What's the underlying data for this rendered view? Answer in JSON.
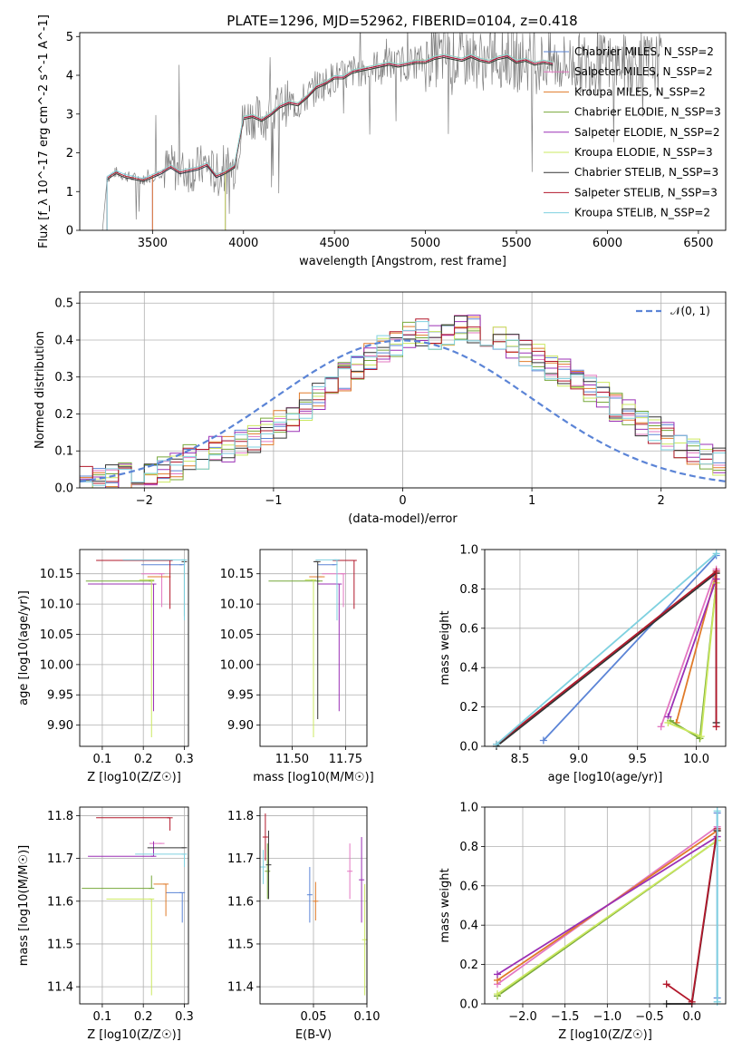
{
  "figure_title": "PLATE=1296, MJD=52962, FIBERID=0104, z=0.418",
  "colors": {
    "chabrier_miles": "#5b84d6",
    "salpeter_miles": "#e377c2",
    "kroupa_miles": "#e07b2a",
    "chabrier_elodie": "#77a83a",
    "salpeter_elodie": "#9b30b5",
    "kroupa_elodie": "#cbe860",
    "chabrier_stelib": "#333333",
    "salpeter_stelib": "#b2182b",
    "kroupa_stelib": "#7fd1e0",
    "data": "#808080",
    "normal": "#5b84d6",
    "grid": "#b0b0b0"
  },
  "chart_data": [
    {
      "id": "spectrum",
      "type": "line",
      "title": "PLATE=1296, MJD=52962, FIBERID=0104, z=0.418",
      "xlabel": "wavelength [Angstrom, rest frame]",
      "ylabel": "Flux [f_λ 10^-17 erg cm^-2 s^-1 A^-1]",
      "xlim": [
        3100,
        6650
      ],
      "ylim": [
        0,
        5.1
      ],
      "xticks": [
        "3500",
        "4000",
        "4500",
        "5000",
        "5500",
        "6000",
        "6500"
      ],
      "yticks": [
        "0",
        "1",
        "2",
        "3",
        "4",
        "5"
      ],
      "grid": false,
      "legend_position": "top-right",
      "legend": [
        {
          "label": "Chabrier MILES, N_SSP=2",
          "color_key": "chabrier_miles"
        },
        {
          "label": "Salpeter MILES, N_SSP=2",
          "color_key": "salpeter_miles"
        },
        {
          "label": "Kroupa MILES, N_SSP=2",
          "color_key": "kroupa_miles"
        },
        {
          "label": "Chabrier ELODIE, N_SSP=3",
          "color_key": "chabrier_elodie"
        },
        {
          "label": "Salpeter ELODIE, N_SSP=2",
          "color_key": "salpeter_elodie"
        },
        {
          "label": "Kroupa ELODIE, N_SSP=3",
          "color_key": "kroupa_elodie"
        },
        {
          "label": "Chabrier STELIB, N_SSP=3",
          "color_key": "chabrier_stelib"
        },
        {
          "label": "Salpeter STELIB, N_SSP=3",
          "color_key": "salpeter_stelib"
        },
        {
          "label": "Kroupa STELIB, N_SSP=2",
          "color_key": "kroupa_stelib"
        }
      ],
      "model_x": [
        3250,
        3300,
        3350,
        3400,
        3450,
        3500,
        3550,
        3600,
        3650,
        3700,
        3750,
        3800,
        3850,
        3900,
        3950,
        4000,
        4050,
        4100,
        4150,
        4200,
        4250,
        4300,
        4350,
        4400,
        4450,
        4500,
        4550,
        4600,
        4650,
        4700,
        4750,
        4800,
        4850,
        4900,
        4950,
        5000,
        5050,
        5100,
        5150,
        5200,
        5250,
        5300,
        5350,
        5400,
        5450,
        5500,
        5550,
        5600,
        5650,
        5700
      ],
      "model_y": [
        1.35,
        1.5,
        1.4,
        1.35,
        1.3,
        1.4,
        1.5,
        1.65,
        1.5,
        1.55,
        1.6,
        1.7,
        1.4,
        1.5,
        1.65,
        2.9,
        2.95,
        2.85,
        3.0,
        3.2,
        3.3,
        3.25,
        3.45,
        3.7,
        3.8,
        3.95,
        3.95,
        4.1,
        4.15,
        4.2,
        4.25,
        4.3,
        4.25,
        4.3,
        4.35,
        4.35,
        4.45,
        4.5,
        4.45,
        4.4,
        4.5,
        4.4,
        4.35,
        4.45,
        4.5,
        4.35,
        4.4,
        4.3,
        4.35,
        4.3
      ],
      "model_starts": {
        "chabrier_miles": 3500,
        "salpeter_miles": 3500,
        "kroupa_miles": 3500,
        "chabrier_elodie": 3900,
        "salpeter_elodie": 3900,
        "kroupa_elodie": 3900,
        "chabrier_stelib": 3250,
        "salpeter_stelib": 3250,
        "kroupa_stelib": 3250
      }
    },
    {
      "id": "residuals",
      "type": "histogram",
      "xlabel": "(data-model)/error",
      "ylabel": "Normed distribution",
      "xlim": [
        -2.5,
        2.5
      ],
      "ylim": [
        0,
        0.53
      ],
      "xticks": [
        "−2",
        "−1",
        "0",
        "1",
        "2"
      ],
      "yticks": [
        "0.0",
        "0.1",
        "0.2",
        "0.3",
        "0.4",
        "0.5"
      ],
      "grid": true,
      "legend_position": "top-right",
      "legend": [
        {
          "label": "𝒩(0, 1)",
          "style": "dashed",
          "color_key": "normal"
        }
      ],
      "bin_edges_start": -2.5,
      "bin_width": 0.1,
      "hist_values": [
        0.02,
        0.02,
        0.03,
        0.03,
        0.03,
        0.04,
        0.05,
        0.06,
        0.08,
        0.09,
        0.1,
        0.1,
        0.12,
        0.13,
        0.15,
        0.17,
        0.19,
        0.22,
        0.25,
        0.27,
        0.3,
        0.33,
        0.36,
        0.38,
        0.39,
        0.41,
        0.42,
        0.41,
        0.42,
        0.43,
        0.43,
        0.42,
        0.41,
        0.39,
        0.37,
        0.35,
        0.33,
        0.31,
        0.29,
        0.27,
        0.25,
        0.22,
        0.2,
        0.18,
        0.16,
        0.14,
        0.12,
        0.1,
        0.08,
        0.07
      ]
    },
    {
      "id": "age_vs_Z",
      "type": "scatter",
      "xlabel": "Z [log10(Z/Z☉)]",
      "ylabel": "age [log10(age/yr)]",
      "xlim": [
        0.045,
        0.31
      ],
      "ylim": [
        9.865,
        10.19
      ],
      "xticks": [
        "0.1",
        "0.2",
        "0.3"
      ],
      "yticks": [
        "9.90",
        "9.95",
        "10.00",
        "10.05",
        "10.10",
        "10.15"
      ],
      "grid": true,
      "points": [
        {
          "key": "chabrier_miles",
          "x": 0.295,
          "y": 10.165,
          "xerr": 0.1,
          "yerr": [
            0.0,
            0.0
          ]
        },
        {
          "key": "salpeter_miles",
          "x": 0.245,
          "y": 10.15,
          "xerr": 0.05,
          "yerr": [
            0.055,
            0.0
          ]
        },
        {
          "key": "kroupa_miles",
          "x": 0.26,
          "y": 10.145,
          "xerr": 0.05,
          "yerr": [
            0.0,
            0.0
          ]
        },
        {
          "key": "chabrier_elodie",
          "x": 0.22,
          "y": 10.138,
          "xerr": 0.16,
          "yerr": [
            0.0,
            0.0
          ]
        },
        {
          "key": "salpeter_elodie",
          "x": 0.225,
          "y": 10.133,
          "xerr": 0.16,
          "yerr": [
            0.21,
            0.0
          ]
        },
        {
          "key": "kroupa_elodie",
          "x": 0.22,
          "y": 10.14,
          "xerr": 0.03,
          "yerr": [
            0.26,
            0.0
          ]
        },
        {
          "key": "chabrier_stelib",
          "x": 0.3,
          "y": 10.17,
          "xerr": 0.0,
          "yerr": [
            0.09,
            0.0
          ]
        },
        {
          "key": "salpeter_stelib",
          "x": 0.265,
          "y": 10.172,
          "xerr": 0.18,
          "yerr": [
            0.08,
            0.0
          ]
        },
        {
          "key": "kroupa_stelib",
          "x": 0.3,
          "y": 10.173,
          "xerr": 0.15,
          "yerr": [
            0.1,
            0.0
          ]
        }
      ]
    },
    {
      "id": "age_vs_mass",
      "type": "scatter",
      "xlabel": "mass [log10(M/M☉)]",
      "ylabel": "",
      "xlim": [
        11.35,
        11.85
      ],
      "ylim": [
        9.865,
        10.19
      ],
      "xticks": [
        "11.50",
        "11.75"
      ],
      "yticks": [
        "9.90",
        "9.95",
        "10.00",
        "10.05",
        "10.10",
        "10.15"
      ],
      "grid": true,
      "points": [
        {
          "key": "chabrier_miles",
          "x": 11.7,
          "y": 10.165,
          "xerr": 0.08,
          "yerr": [
            0.0,
            0.0
          ]
        },
        {
          "key": "salpeter_miles",
          "x": 11.74,
          "y": 10.15,
          "xerr": 0.1,
          "yerr": [
            0.055,
            0.0
          ]
        },
        {
          "key": "kroupa_miles",
          "x": 11.64,
          "y": 10.145,
          "xerr": 0.06,
          "yerr": [
            0.0,
            0.0
          ]
        },
        {
          "key": "chabrier_elodie",
          "x": 11.63,
          "y": 10.138,
          "xerr": 0.24,
          "yerr": [
            0.0,
            0.0
          ]
        },
        {
          "key": "salpeter_elodie",
          "x": 11.72,
          "y": 10.133,
          "xerr": 0.1,
          "yerr": [
            0.21,
            0.0
          ]
        },
        {
          "key": "kroupa_elodie",
          "x": 11.6,
          "y": 10.14,
          "xerr": 0.04,
          "yerr": [
            0.26,
            0.0
          ]
        },
        {
          "key": "chabrier_stelib",
          "x": 11.62,
          "y": 10.17,
          "xerr": 0.02,
          "yerr": [
            0.26,
            0.0
          ]
        },
        {
          "key": "salpeter_stelib",
          "x": 11.79,
          "y": 10.172,
          "xerr": 0.1,
          "yerr": [
            0.08,
            0.0
          ]
        },
        {
          "key": "kroupa_stelib",
          "x": 11.71,
          "y": 10.173,
          "xerr": 0.1,
          "yerr": [
            0.1,
            0.0
          ]
        }
      ]
    },
    {
      "id": "mass_weight_vs_age",
      "type": "line",
      "xlabel": "age [log10(age/yr)]",
      "ylabel": "mass weight",
      "xlim": [
        8.2,
        10.25
      ],
      "ylim": [
        0,
        1
      ],
      "xticks": [
        "8.5",
        "9.0",
        "9.5",
        "10.0"
      ],
      "yticks": [
        "0.0",
        "0.2",
        "0.4",
        "0.6",
        "0.8",
        "1.0"
      ],
      "grid": true,
      "series": [
        {
          "key": "chabrier_miles",
          "x": [
            8.7,
            10.17
          ],
          "y": [
            0.03,
            0.97
          ]
        },
        {
          "key": "salpeter_miles",
          "x": [
            9.7,
            10.17
          ],
          "y": [
            0.1,
            0.9
          ]
        },
        {
          "key": "kroupa_miles",
          "x": [
            9.83,
            10.17
          ],
          "y": [
            0.12,
            0.88
          ]
        },
        {
          "key": "chabrier_elodie",
          "x": [
            9.78,
            10.03,
            10.17
          ],
          "y": [
            0.13,
            0.04,
            0.83
          ]
        },
        {
          "key": "salpeter_elodie",
          "x": [
            9.76,
            10.17
          ],
          "y": [
            0.15,
            0.85
          ]
        },
        {
          "key": "kroupa_elodie",
          "x": [
            9.76,
            10.04,
            10.17
          ],
          "y": [
            0.12,
            0.05,
            0.83
          ]
        },
        {
          "key": "chabrier_stelib",
          "x": [
            8.3,
            10.17,
            10.17
          ],
          "y": [
            0.0,
            0.88,
            0.12
          ]
        },
        {
          "key": "salpeter_stelib",
          "x": [
            8.3,
            10.17,
            10.17
          ],
          "y": [
            0.01,
            0.89,
            0.1
          ]
        },
        {
          "key": "kroupa_stelib",
          "x": [
            8.3,
            10.17
          ],
          "y": [
            0.01,
            0.98
          ]
        }
      ]
    },
    {
      "id": "mass_vs_Z",
      "type": "scatter",
      "xlabel": "Z [log10(Z/Z☉)]",
      "ylabel": "mass [log10(M/M☉)]",
      "xlim": [
        0.045,
        0.31
      ],
      "ylim": [
        11.36,
        11.82
      ],
      "xticks": [
        "0.1",
        "0.2",
        "0.3"
      ],
      "yticks": [
        "11.4",
        "11.5",
        "11.6",
        "11.7",
        "11.8"
      ],
      "grid": true,
      "points": [
        {
          "key": "chabrier_miles",
          "x": 0.295,
          "y": 11.62,
          "xerr": 0.04,
          "yerr": [
            0.07,
            0.0
          ]
        },
        {
          "key": "salpeter_miles",
          "x": 0.245,
          "y": 11.735,
          "xerr": 0.03,
          "yerr": [
            0.0,
            0.0
          ]
        },
        {
          "key": "kroupa_miles",
          "x": 0.255,
          "y": 11.64,
          "xerr": 0.03,
          "yerr": [
            0.075,
            0.0
          ]
        },
        {
          "key": "chabrier_elodie",
          "x": 0.22,
          "y": 11.63,
          "xerr": 0.17,
          "yerr": [
            0.0,
            0.03
          ]
        },
        {
          "key": "salpeter_elodie",
          "x": 0.225,
          "y": 11.705,
          "xerr": 0.16,
          "yerr": [
            0.0,
            0.035
          ]
        },
        {
          "key": "kroupa_elodie",
          "x": 0.22,
          "y": 11.605,
          "xerr": 0.11,
          "yerr": [
            0.225,
            0.0
          ]
        },
        {
          "key": "chabrier_stelib",
          "x": 0.3,
          "y": 11.725,
          "xerr": 0.09,
          "yerr": [
            0.0,
            0.0
          ]
        },
        {
          "key": "salpeter_stelib",
          "x": 0.265,
          "y": 11.795,
          "xerr": 0.18,
          "yerr": [
            0.03,
            0.0
          ]
        },
        {
          "key": "kroupa_stelib",
          "x": 0.3,
          "y": 11.71,
          "xerr": 0.12,
          "yerr": [
            0.03,
            0.0
          ]
        }
      ]
    },
    {
      "id": "mass_vs_ebv",
      "type": "scatter",
      "xlabel": "E(B-V)",
      "ylabel": "",
      "xlim": [
        0.0,
        0.1
      ],
      "ylim": [
        11.36,
        11.82
      ],
      "xticks": [
        "0.05",
        "0.10"
      ],
      "yticks": [
        "11.4",
        "11.5",
        "11.6",
        "11.7",
        "11.8"
      ],
      "grid": true,
      "points": [
        {
          "key": "chabrier_miles",
          "x": 0.0465,
          "y": 11.615,
          "xerr": 0.0,
          "yerr": [
            0.065,
            0.065
          ]
        },
        {
          "key": "salpeter_miles",
          "x": 0.084,
          "y": 11.67,
          "xerr": 0.0,
          "yerr": [
            0.065,
            0.065
          ]
        },
        {
          "key": "kroupa_miles",
          "x": 0.052,
          "y": 11.6,
          "xerr": 0.0,
          "yerr": [
            0.045,
            0.045
          ]
        },
        {
          "key": "chabrier_elodie",
          "x": 0.007,
          "y": 11.67,
          "xerr": 0.0,
          "yerr": [
            0.065,
            0.065
          ]
        },
        {
          "key": "salpeter_elodie",
          "x": 0.095,
          "y": 11.65,
          "xerr": 0.0,
          "yerr": [
            0.1,
            0.1
          ]
        },
        {
          "key": "kroupa_elodie",
          "x": 0.098,
          "y": 11.51,
          "xerr": 0.0,
          "yerr": [
            0.13,
            0.13
          ]
        },
        {
          "key": "chabrier_stelib",
          "x": 0.008,
          "y": 11.685,
          "xerr": 0.0,
          "yerr": [
            0.08,
            0.08
          ]
        },
        {
          "key": "salpeter_stelib",
          "x": 0.005,
          "y": 11.75,
          "xerr": 0.0,
          "yerr": [
            0.055,
            0.055
          ]
        },
        {
          "key": "kroupa_stelib",
          "x": 0.003,
          "y": 11.68,
          "xerr": 0.0,
          "yerr": [
            0.04,
            0.04
          ]
        }
      ]
    },
    {
      "id": "mass_weight_vs_Z",
      "type": "line",
      "xlabel": "Z [log10(Z/Z☉)]",
      "ylabel": "mass weight",
      "xlim": [
        -2.45,
        0.4
      ],
      "ylim": [
        0,
        1
      ],
      "xticks": [
        "−2.0",
        "−1.5",
        "−1.0",
        "−0.5",
        "0.0"
      ],
      "yticks": [
        "0.0",
        "0.2",
        "0.4",
        "0.6",
        "0.8",
        "1.0"
      ],
      "grid": true,
      "series": [
        {
          "key": "chabrier_miles",
          "x": [
            0.3,
            0.3
          ],
          "y": [
            0.03,
            0.97
          ]
        },
        {
          "key": "salpeter_miles",
          "x": [
            -2.3,
            0.3
          ],
          "y": [
            0.1,
            0.9
          ]
        },
        {
          "key": "kroupa_miles",
          "x": [
            -2.3,
            0.3
          ],
          "y": [
            0.12,
            0.88
          ]
        },
        {
          "key": "chabrier_elodie",
          "x": [
            -2.3,
            0.3
          ],
          "y": [
            0.04,
            0.83
          ]
        },
        {
          "key": "salpeter_elodie",
          "x": [
            -2.3,
            0.3
          ],
          "y": [
            0.15,
            0.85
          ]
        },
        {
          "key": "kroupa_elodie",
          "x": [
            -2.3,
            0.3
          ],
          "y": [
            0.05,
            0.83
          ]
        },
        {
          "key": "chabrier_stelib",
          "x": [
            -0.3,
            0.0,
            0.3
          ],
          "y": [
            0.0,
            0.0,
            0.88
          ]
        },
        {
          "key": "salpeter_stelib",
          "x": [
            -0.3,
            0.0,
            0.3
          ],
          "y": [
            0.1,
            0.01,
            0.89
          ]
        },
        {
          "key": "kroupa_stelib",
          "x": [
            0.3,
            0.3
          ],
          "y": [
            0.01,
            0.98
          ]
        }
      ]
    }
  ]
}
